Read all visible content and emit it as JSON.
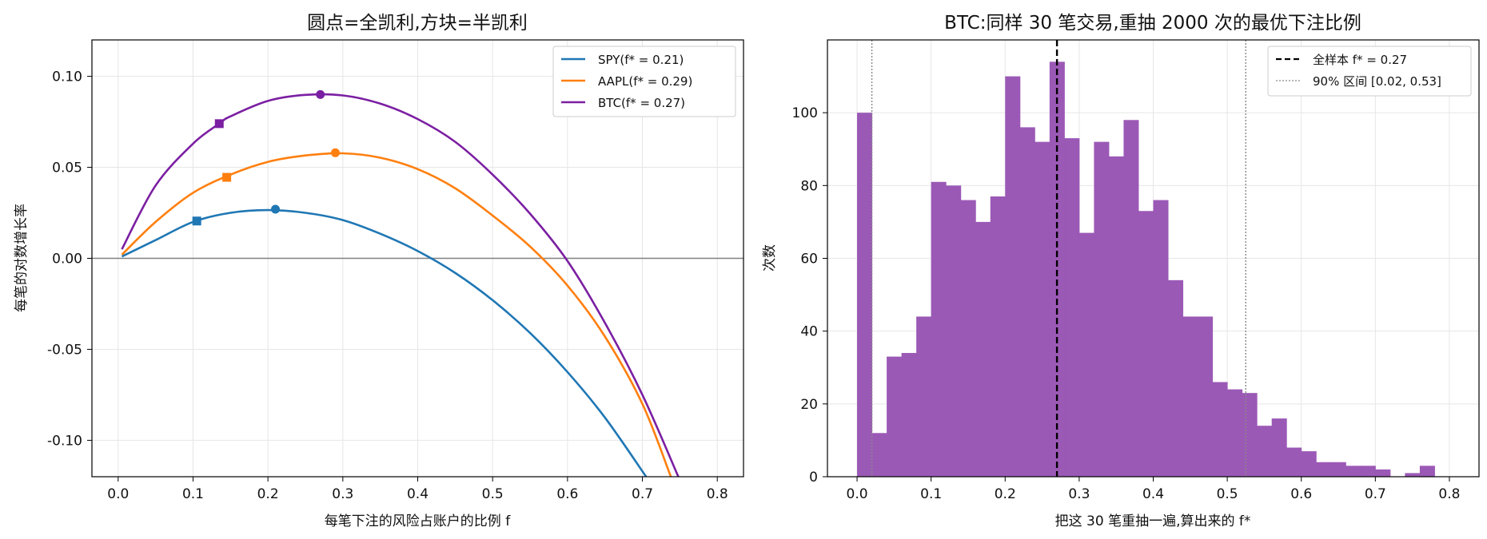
{
  "chart_data": [
    {
      "type": "line",
      "title": "圆点=全凯利,方块=半凯利",
      "xlabel": "每笔下注的风险占账户的比例 f",
      "ylabel": "每笔的对数增长率",
      "xlim": [
        -0.035,
        0.835
      ],
      "ylim": [
        -0.12,
        0.12
      ],
      "xticks": [
        "0.0",
        "0.1",
        "0.2",
        "0.3",
        "0.4",
        "0.5",
        "0.6",
        "0.7",
        "0.8"
      ],
      "yticks": [
        "0.10",
        "0.05",
        "0.00",
        "-0.05",
        "-0.10"
      ],
      "grid": true,
      "legend_position": "top-right",
      "reference_line_y": 0,
      "series": [
        {
          "name": "SPY(f* = 0.21)",
          "color": "#1f77b4",
          "x": [
            0.005,
            0.05,
            0.1,
            0.15,
            0.2,
            0.25,
            0.3,
            0.35,
            0.4,
            0.45,
            0.5,
            0.55,
            0.6,
            0.65,
            0.705
          ],
          "y": [
            0.001,
            0.01,
            0.02,
            0.025,
            0.0265,
            0.025,
            0.021,
            0.0135,
            0.004,
            -0.008,
            -0.023,
            -0.041,
            -0.0625,
            -0.0875,
            -0.12
          ],
          "full_kelly": {
            "x": 0.21,
            "y": 0.027
          },
          "half_kelly": {
            "x": 0.105,
            "y": 0.0205
          }
        },
        {
          "name": "AAPL(f* = 0.29)",
          "color": "#ff7f0e",
          "x": [
            0.005,
            0.05,
            0.1,
            0.15,
            0.2,
            0.25,
            0.3,
            0.35,
            0.4,
            0.45,
            0.5,
            0.55,
            0.6,
            0.65,
            0.7,
            0.738
          ],
          "y": [
            0.002,
            0.02,
            0.036,
            0.046,
            0.053,
            0.0565,
            0.0577,
            0.0553,
            0.049,
            0.0385,
            0.0235,
            0.0065,
            -0.015,
            -0.043,
            -0.08,
            -0.12
          ],
          "full_kelly": {
            "x": 0.29,
            "y": 0.058
          },
          "half_kelly": {
            "x": 0.145,
            "y": 0.0445
          }
        },
        {
          "name": "BTC(f* = 0.27)",
          "color": "#7b1fa2",
          "x": [
            0.005,
            0.05,
            0.1,
            0.135,
            0.15,
            0.2,
            0.25,
            0.3,
            0.35,
            0.4,
            0.45,
            0.5,
            0.55,
            0.6,
            0.65,
            0.7,
            0.748
          ],
          "y": [
            0.005,
            0.04,
            0.063,
            0.074,
            0.078,
            0.0865,
            0.0898,
            0.0895,
            0.085,
            0.0765,
            0.064,
            0.046,
            0.0245,
            -0.0015,
            -0.0355,
            -0.075,
            -0.12
          ],
          "full_kelly": {
            "x": 0.27,
            "y": 0.09
          },
          "half_kelly": {
            "x": 0.135,
            "y": 0.074
          }
        }
      ]
    },
    {
      "type": "histogram",
      "title": "BTC:同样 30 笔交易,重抽 2000 次的最优下注比例",
      "xlabel": "把这 30 笔重抽一遍,算出来的 f*",
      "ylabel": "次数",
      "xlim": [
        -0.04,
        0.84
      ],
      "ylim": [
        0,
        120
      ],
      "xticks": [
        "0.0",
        "0.1",
        "0.2",
        "0.3",
        "0.4",
        "0.5",
        "0.6",
        "0.7",
        "0.8"
      ],
      "yticks": [
        "0",
        "20",
        "40",
        "60",
        "80",
        "100"
      ],
      "grid": true,
      "legend_position": "top-right",
      "bar_color": "#9b59b6",
      "bin_start": 0.0,
      "bin_width": 0.02,
      "counts": [
        100,
        12,
        33,
        34,
        44,
        81,
        80,
        76,
        70,
        77,
        110,
        96,
        92,
        114,
        93,
        67,
        92,
        88,
        98,
        73,
        76,
        54,
        44,
        44,
        26,
        24,
        23,
        14,
        16,
        8,
        7,
        4,
        4,
        3,
        3,
        2,
        0,
        1,
        3
      ],
      "reference_lines": [
        {
          "label": "全样本 f* = 0.27",
          "x": 0.27,
          "style": "dashed",
          "color": "#000000"
        },
        {
          "label": "90% 区间 [0.02, 0.53]",
          "x": [
            0.02,
            0.525
          ],
          "style": "dotted",
          "color": "#888888"
        }
      ]
    }
  ]
}
